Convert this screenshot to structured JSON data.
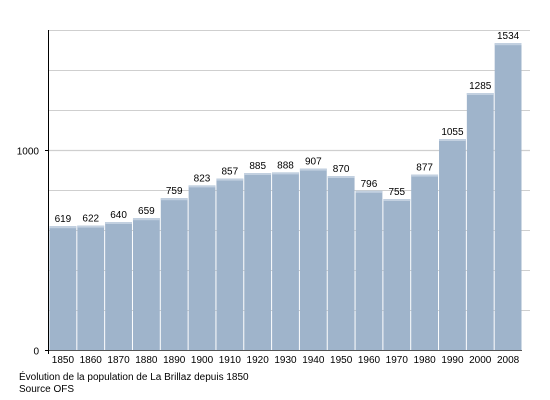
{
  "chart_data": {
    "type": "bar",
    "categories": [
      "1850",
      "1860",
      "1870",
      "1880",
      "1890",
      "1900",
      "1910",
      "1920",
      "1930",
      "1940",
      "1950",
      "1960",
      "1970",
      "1980",
      "1990",
      "2000",
      "2008"
    ],
    "values": [
      619,
      622,
      640,
      659,
      759,
      823,
      857,
      885,
      888,
      907,
      870,
      796,
      755,
      877,
      1055,
      1285,
      1534
    ],
    "data_labels": [
      "619",
      "622",
      "640",
      "659",
      "759",
      "823",
      "857",
      "885",
      "888",
      "907",
      "870",
      "796",
      "755",
      "877",
      "1055",
      "1285",
      "1534"
    ],
    "ylim": [
      0,
      1600
    ],
    "y_ticks": [
      0,
      1000
    ],
    "y_tick_labels": [
      "0",
      "1000"
    ],
    "grid_values": [
      200,
      400,
      600,
      800,
      1000,
      1200,
      1400,
      1600
    ],
    "grid": true,
    "legend": "none",
    "title": "",
    "xlabel": "",
    "ylabel": ""
  },
  "colors": {
    "bar": "#9fb4cb",
    "bar_top": "#c2d0e0",
    "grid": "#cfcfcf",
    "axis": "#000000"
  },
  "caption": {
    "line1": "Évolution de la population de La Brillaz depuis 1850",
    "line2": "Source OFS"
  }
}
